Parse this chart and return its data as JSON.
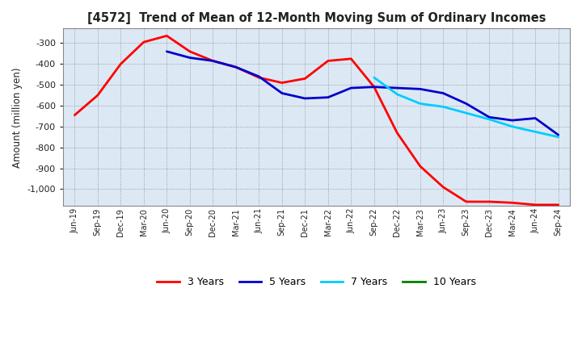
{
  "title": "[4572]  Trend of Mean of 12-Month Moving Sum of Ordinary Incomes",
  "ylabel": "Amount (million yen)",
  "ylim": [
    -1080,
    -230
  ],
  "yticks": [
    -1000,
    -900,
    -800,
    -700,
    -600,
    -500,
    -400,
    -300
  ],
  "background_color": "#ffffff",
  "plot_bg_color": "#dce9f5",
  "grid_color": "#aaaaaa",
  "x_labels": [
    "Jun-19",
    "Sep-19",
    "Dec-19",
    "Mar-20",
    "Jun-20",
    "Sep-20",
    "Dec-20",
    "Mar-21",
    "Jun-21",
    "Sep-21",
    "Dec-21",
    "Mar-22",
    "Jun-22",
    "Sep-22",
    "Dec-22",
    "Mar-23",
    "Jun-23",
    "Sep-23",
    "Dec-23",
    "Mar-24",
    "Jun-24",
    "Sep-24"
  ],
  "series": {
    "3 Years": {
      "color": "#ff0000",
      "linewidth": 2.0,
      "data_x": [
        0,
        1,
        2,
        3,
        4,
        5,
        6,
        7,
        8,
        9,
        10,
        11,
        12,
        13,
        14,
        15,
        16,
        17,
        18,
        19,
        20,
        21
      ],
      "data_y": [
        -645,
        -550,
        -400,
        -295,
        -265,
        -340,
        -385,
        -415,
        -465,
        -490,
        -470,
        -385,
        -375,
        -510,
        -730,
        -890,
        -990,
        -1060,
        -1060,
        -1065,
        -1075,
        -1075
      ]
    },
    "5 Years": {
      "color": "#0000cc",
      "linewidth": 2.0,
      "data_x": [
        4,
        5,
        6,
        7,
        8,
        9,
        10,
        11,
        12,
        13,
        14,
        15,
        16,
        17,
        18,
        19,
        20,
        21
      ],
      "data_y": [
        -340,
        -370,
        -385,
        -415,
        -460,
        -540,
        -565,
        -560,
        -515,
        -510,
        -515,
        -520,
        -540,
        -590,
        -655,
        -670,
        -660,
        -740
      ]
    },
    "7 Years": {
      "color": "#00ccff",
      "linewidth": 2.0,
      "data_x": [
        13,
        14,
        15,
        16,
        17,
        18,
        19,
        20,
        21
      ],
      "data_y": [
        -465,
        -545,
        -590,
        -605,
        -635,
        -665,
        -700,
        -725,
        -750
      ]
    },
    "10 Years": {
      "color": "#008000",
      "linewidth": 2.0,
      "data_x": [],
      "data_y": []
    }
  },
  "legend_colors": {
    "3 Years": "#ff0000",
    "5 Years": "#0000cc",
    "7 Years": "#00ccff",
    "10 Years": "#008000"
  }
}
